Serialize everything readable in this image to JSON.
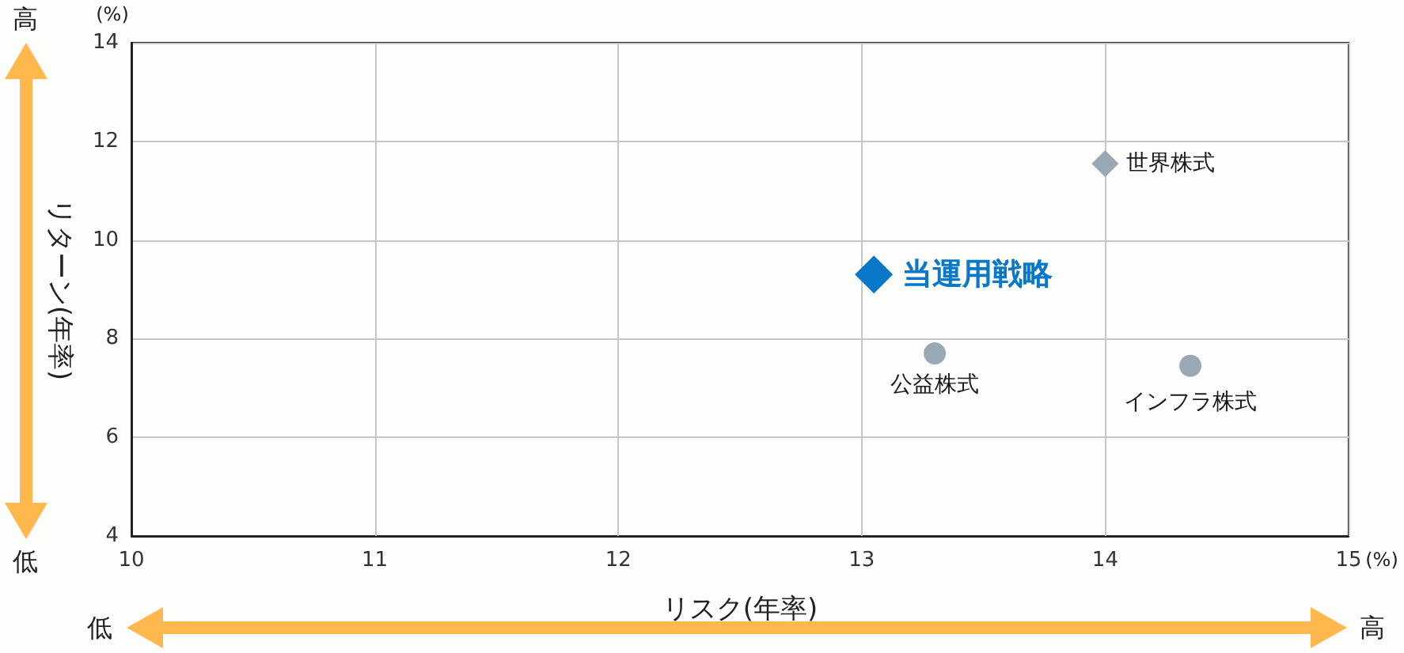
{
  "chart_data": {
    "type": "scatter",
    "xlabel": "リスク(年率)",
    "ylabel": "リターン(年率)",
    "xlim": [
      10,
      15
    ],
    "xticks": [
      10,
      11,
      12,
      13,
      14,
      15
    ],
    "ylim": [
      4,
      14
    ],
    "yticks": [
      4,
      6,
      8,
      10,
      12,
      14
    ],
    "grid": true,
    "legend": false,
    "annotations": [
      "(%)",
      "(%)",
      "高",
      "低",
      "低",
      "高"
    ],
    "series": [
      {
        "name": "当運用戦略",
        "color": "#0a78c8",
        "marker": "diamond",
        "x": [
          13.05
        ],
        "values": [
          9.3
        ]
      },
      {
        "name": "世界株式",
        "color": "#98a9b5",
        "marker": "diamond",
        "x": [
          14.0
        ],
        "values": [
          11.55
        ]
      },
      {
        "name": "公益株式",
        "color": "#98a9b5",
        "marker": "circle",
        "x": [
          13.3
        ],
        "values": [
          7.7
        ]
      },
      {
        "name": "インフラ株式",
        "color": "#98a9b5",
        "marker": "circle",
        "x": [
          14.35
        ],
        "values": [
          7.45
        ]
      }
    ]
  }
}
